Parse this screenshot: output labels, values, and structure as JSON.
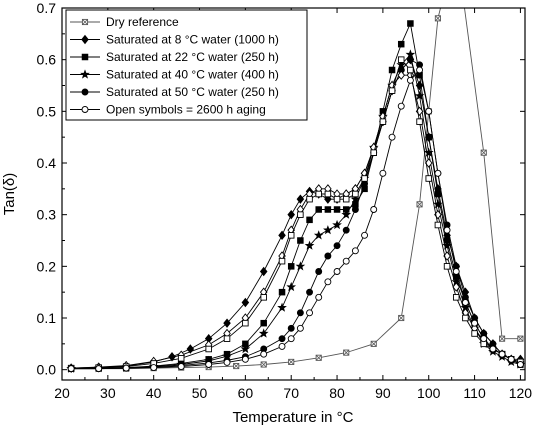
{
  "chart_data": {
    "type": "line",
    "xlabel": "Temperature in °C",
    "ylabel": "Tan(δ)",
    "xlim": [
      20,
      121
    ],
    "ylim": [
      -0.02,
      0.7
    ],
    "xticks": [
      20,
      30,
      40,
      50,
      60,
      70,
      80,
      90,
      100,
      110,
      120
    ],
    "yticks": [
      0.0,
      0.1,
      0.2,
      0.3,
      0.4,
      0.5,
      0.6,
      0.7
    ],
    "ytick_labels": [
      "0.0",
      "0.1",
      "0.2",
      "0.3",
      "0.4",
      "0.5",
      "0.6",
      "0.7"
    ],
    "legend_position": "top-left",
    "legend": [
      "Dry reference",
      "Saturated at 8 °C water   (1000 h)",
      "Saturated at 22 °C water (250 h)",
      "Saturated at 40 °C water (400 h)",
      "Saturated at 50 °C water (250 h)",
      "Open symbols = 2600 h aging"
    ],
    "series": [
      {
        "name": "Dry reference",
        "marker": "square-x",
        "color": "#555555",
        "x": [
          22,
          28,
          34,
          40,
          46,
          52,
          58,
          64,
          70,
          76,
          82,
          88,
          94,
          98,
          100,
          102,
          106,
          112,
          116,
          120
        ],
        "y": [
          0.002,
          0.002,
          0.002,
          0.003,
          0.004,
          0.005,
          0.007,
          0.01,
          0.015,
          0.023,
          0.033,
          0.05,
          0.1,
          0.32,
          0.5,
          0.68,
          0.82,
          0.42,
          0.06,
          0.06
        ]
      },
      {
        "name": "Saturated at 8 °C water   (1000 h)",
        "marker": "diamond",
        "color": "#000000",
        "x": [
          22,
          28,
          34,
          40,
          44,
          48,
          52,
          56,
          60,
          64,
          68,
          70,
          72,
          74,
          76,
          78,
          80,
          82,
          84,
          86,
          88,
          90,
          92,
          94,
          96,
          98,
          100,
          102,
          104,
          106,
          108,
          110,
          112,
          114,
          116,
          118,
          120
        ],
        "y": [
          0.003,
          0.004,
          0.007,
          0.015,
          0.025,
          0.04,
          0.06,
          0.09,
          0.13,
          0.19,
          0.26,
          0.3,
          0.33,
          0.345,
          0.34,
          0.33,
          0.33,
          0.34,
          0.35,
          0.38,
          0.43,
          0.48,
          0.54,
          0.58,
          0.6,
          0.55,
          0.45,
          0.35,
          0.26,
          0.2,
          0.15,
          0.1,
          0.07,
          0.05,
          0.03,
          0.02,
          0.02
        ]
      },
      {
        "name": "Saturated at 22 °C water (250 h)",
        "marker": "square",
        "color": "#000000",
        "x": [
          22,
          28,
          34,
          40,
          46,
          52,
          56,
          60,
          64,
          68,
          70,
          72,
          74,
          76,
          78,
          80,
          82,
          84,
          86,
          88,
          90,
          92,
          94,
          96,
          98,
          100,
          102,
          104,
          106,
          108,
          110,
          112,
          114,
          116,
          118,
          120
        ],
        "y": [
          0.002,
          0.003,
          0.004,
          0.007,
          0.012,
          0.02,
          0.03,
          0.05,
          0.09,
          0.15,
          0.2,
          0.25,
          0.29,
          0.31,
          0.31,
          0.31,
          0.31,
          0.32,
          0.35,
          0.42,
          0.5,
          0.58,
          0.63,
          0.67,
          0.57,
          0.45,
          0.34,
          0.25,
          0.18,
          0.13,
          0.09,
          0.06,
          0.04,
          0.03,
          0.02,
          0.01
        ]
      },
      {
        "name": "Saturated at 40 °C water (400 h)",
        "marker": "star",
        "color": "#000000",
        "x": [
          22,
          28,
          34,
          40,
          46,
          52,
          56,
          60,
          64,
          68,
          70,
          72,
          74,
          76,
          78,
          80,
          82,
          84,
          86,
          88,
          90,
          92,
          94,
          96,
          98,
          100,
          102,
          104,
          106,
          108,
          110,
          112,
          114,
          116,
          118,
          120
        ],
        "y": [
          0.002,
          0.003,
          0.004,
          0.006,
          0.01,
          0.017,
          0.026,
          0.04,
          0.07,
          0.12,
          0.16,
          0.2,
          0.24,
          0.26,
          0.27,
          0.28,
          0.3,
          0.33,
          0.37,
          0.43,
          0.49,
          0.55,
          0.59,
          0.61,
          0.53,
          0.42,
          0.32,
          0.24,
          0.17,
          0.12,
          0.08,
          0.05,
          0.035,
          0.025,
          0.015,
          0.01
        ]
      },
      {
        "name": "Saturated at 50 °C water (250 h)",
        "marker": "circle",
        "color": "#000000",
        "x": [
          22,
          28,
          34,
          40,
          46,
          52,
          56,
          60,
          64,
          68,
          70,
          72,
          74,
          76,
          78,
          80,
          82,
          84,
          86,
          88,
          90,
          92,
          94,
          96,
          98,
          100,
          102,
          104,
          106,
          108,
          110,
          112,
          114,
          116,
          118,
          120
        ],
        "y": [
          0.002,
          0.002,
          0.003,
          0.005,
          0.008,
          0.013,
          0.018,
          0.025,
          0.04,
          0.06,
          0.08,
          0.11,
          0.15,
          0.19,
          0.22,
          0.24,
          0.27,
          0.31,
          0.36,
          0.42,
          0.48,
          0.54,
          0.58,
          0.6,
          0.59,
          0.5,
          0.38,
          0.28,
          0.2,
          0.14,
          0.1,
          0.07,
          0.05,
          0.03,
          0.02,
          0.01
        ]
      },
      {
        "name": "Saturated at 8 °C water   (1000 h) — 2600 h aging",
        "marker": "diamond-open",
        "color": "#000000",
        "x": [
          22,
          28,
          34,
          40,
          46,
          52,
          56,
          60,
          64,
          68,
          70,
          72,
          74,
          76,
          78,
          80,
          82,
          84,
          86,
          88,
          90,
          92,
          94,
          96,
          98,
          100,
          102,
          104,
          106,
          108,
          110,
          112,
          114,
          116,
          118,
          120
        ],
        "y": [
          0.003,
          0.005,
          0.008,
          0.016,
          0.028,
          0.048,
          0.07,
          0.1,
          0.15,
          0.22,
          0.27,
          0.31,
          0.34,
          0.35,
          0.35,
          0.34,
          0.34,
          0.35,
          0.38,
          0.43,
          0.49,
          0.55,
          0.57,
          0.57,
          0.5,
          0.4,
          0.3,
          0.22,
          0.16,
          0.11,
          0.08,
          0.055,
          0.04,
          0.03,
          0.02,
          0.015
        ]
      },
      {
        "name": "Saturated at 22 °C water (250 h) — 2600 h aging",
        "marker": "square-open",
        "color": "#000000",
        "x": [
          22,
          28,
          34,
          40,
          46,
          52,
          56,
          60,
          64,
          68,
          70,
          72,
          74,
          76,
          78,
          80,
          82,
          84,
          86,
          88,
          90,
          92,
          94,
          96,
          98,
          100,
          102,
          104,
          106,
          108,
          110,
          112,
          114,
          116,
          118,
          120
        ],
        "y": [
          0.003,
          0.004,
          0.006,
          0.012,
          0.022,
          0.04,
          0.06,
          0.09,
          0.14,
          0.21,
          0.26,
          0.3,
          0.33,
          0.34,
          0.34,
          0.33,
          0.33,
          0.34,
          0.37,
          0.42,
          0.48,
          0.54,
          0.6,
          0.58,
          0.48,
          0.37,
          0.28,
          0.2,
          0.14,
          0.1,
          0.07,
          0.05,
          0.04,
          0.03,
          0.02,
          0.015
        ]
      },
      {
        "name": "Saturated at 50 °C water (250 h) — 2600 h aging",
        "marker": "circle-open",
        "color": "#000000",
        "x": [
          22,
          28,
          34,
          40,
          46,
          52,
          56,
          60,
          64,
          68,
          70,
          72,
          74,
          76,
          78,
          80,
          82,
          84,
          86,
          88,
          90,
          92,
          94,
          96,
          98,
          100,
          102,
          104,
          106,
          108,
          110,
          112,
          114,
          116,
          118,
          120
        ],
        "y": [
          0.002,
          0.002,
          0.003,
          0.004,
          0.006,
          0.01,
          0.014,
          0.02,
          0.03,
          0.045,
          0.06,
          0.08,
          0.11,
          0.14,
          0.17,
          0.19,
          0.21,
          0.23,
          0.26,
          0.31,
          0.38,
          0.45,
          0.51,
          0.56,
          0.58,
          0.5,
          0.38,
          0.27,
          0.19,
          0.13,
          0.09,
          0.06,
          0.04,
          0.03,
          0.02,
          0.01
        ]
      }
    ]
  }
}
